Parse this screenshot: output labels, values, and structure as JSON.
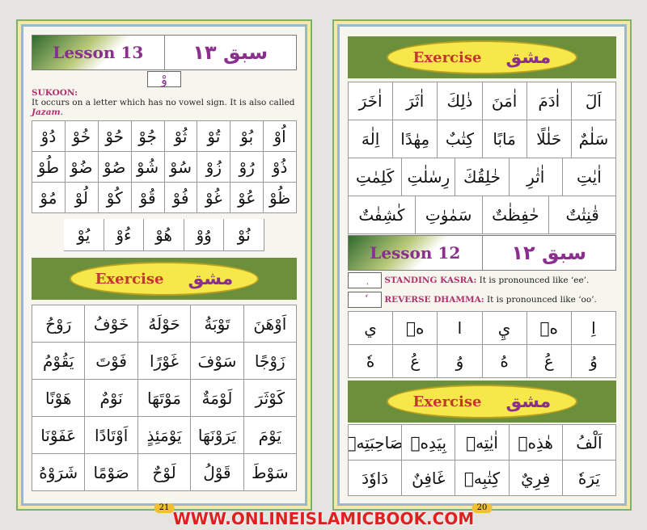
{
  "left": {
    "lesson_en": "Lesson 13",
    "lesson_ar": "سبق ١٣",
    "sign": "وْ",
    "title": "SUKOON:",
    "desc": "It occurs on a letter which has no vowel sign. It is also called ",
    "desc_em": "Jazam",
    "letters": [
      [
        "اُوْ",
        "بُوْ",
        "تُوْ",
        "ثُوْ",
        "جُوْ",
        "حُوْ",
        "خُوْ",
        "دُوْ"
      ],
      [
        "ذُوْ",
        "رُوْ",
        "زُوْ",
        "سُوْ",
        "شُوْ",
        "صُوْ",
        "ضُوْ",
        "طُوْ"
      ],
      [
        "ظُوْ",
        "عُوْ",
        "غُوْ",
        "فُوْ",
        "قُوْ",
        "كُوْ",
        "لُوْ",
        "مُوْ"
      ]
    ],
    "letters_last": [
      "نُوْ",
      "وُوْ",
      "هُوْ",
      "ءُوْ",
      "يُوْ"
    ],
    "exercise_en": "Exercise",
    "exercise_ar": "مشق",
    "exercise": [
      [
        "اَوْهَنَ",
        "تَوْبَةُ",
        "حَوْلَهُ",
        "خَوْفُ",
        "رَوْحُ"
      ],
      [
        "زَوْجًا",
        "سَوْفَ",
        "غَوْرًا",
        "فَوْتَ",
        "يَقُوْمُ"
      ],
      [
        "كَوْثَرَ",
        "لَوْمَةٌ",
        "مَوْتَهَا",
        "نَوْمٌ",
        "هَوْنًا"
      ],
      [
        "يَوْمَ",
        "يَرَوْنَهَا",
        "يَوْمَئِذٍ",
        "اَوْتَادًا",
        "عَفَوْنَا"
      ],
      [
        "سَوْطَ",
        "قَوْلُ",
        "لَوْحٌ",
        "صَوْمًا",
        "شَرَوْهُ"
      ]
    ],
    "page": "21"
  },
  "right": {
    "exercise_en": "Exercise",
    "exercise_ar": "مشق",
    "words": [
      [
        "اَلٓ",
        "اٰدَمَ",
        "اٰمَنَ",
        "ذٰلِكَ",
        "اٰثَرَ",
        "اٰخَرَ"
      ],
      [
        "سَلٰمٌ",
        "حَلٰلًا",
        "مَابًا",
        "كِتٰبٌ",
        "مِهٰدًا",
        "اِلٰهَ"
      ],
      [
        "اٰيٰتِ",
        "اٰثٰرِ",
        "خٰلِقُكَ",
        "رِسٰلٰتِ",
        "كَلِمٰتِ"
      ],
      [
        "قٰنِتٰتٌ",
        "حٰفِظٰتٌ",
        "سَمٰوٰتِ",
        "كٰشِفٰتٌ"
      ]
    ],
    "lesson_en": "Lesson 12",
    "lesson_ar": "سبق ١٢",
    "kasra_sign": "ٖ",
    "kasra_title": "STANDING KASRA:",
    "kasra_desc": " It is pronounced like ‘ee’.",
    "dhamma_sign": "ٗ",
    "dhamma_title": "REVERSE DHAMMA:",
    "dhamma_desc": " It is pronounced like ‘oo’.",
    "letters": [
      [
        "اِ",
        "هٖ",
        "يِ",
        "ا",
        "هٖ",
        "ي"
      ],
      [
        "وُ",
        "عُ",
        "هُ",
        "وُ",
        "عُ",
        "هٗ"
      ]
    ],
    "exercise2_en": "Exercise",
    "exercise2_ar": "مشق",
    "exercise": [
      [
        "اَلْفُ",
        "هٰذِهٖ",
        "اٰيٰتِهٖ",
        "بِيَدِهٖ",
        "صَاحِبَتِهٖ"
      ],
      [
        "يَرَهٗ",
        "فِرِيٌ",
        "كِتٰبِهٖ",
        "غَافِنٌ",
        "دَاوٗدَ"
      ]
    ],
    "page": "20"
  },
  "watermark": "WWW.ONLINEISLAMICBOOK.COM"
}
